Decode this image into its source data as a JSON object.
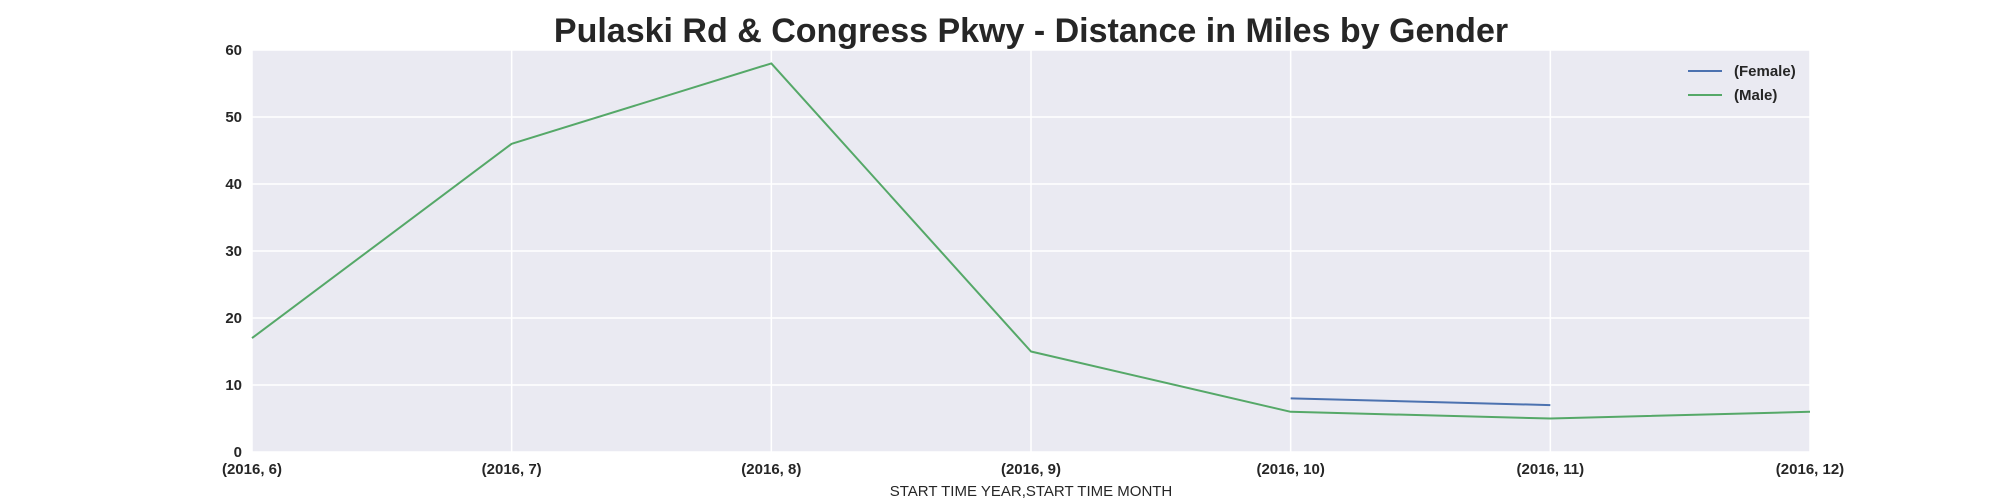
{
  "chart_data": {
    "type": "line",
    "title": "Pulaski Rd & Congress Pkwy - Distance in Miles by Gender",
    "xlabel": "START TIME YEAR,START TIME MONTH",
    "ylabel": "",
    "categories": [
      "(2016, 6)",
      "(2016, 7)",
      "(2016, 8)",
      "(2016, 9)",
      "(2016, 10)",
      "(2016, 11)",
      "(2016, 12)"
    ],
    "yticks": [
      0,
      10,
      20,
      30,
      40,
      50,
      60
    ],
    "ylim": [
      0,
      60
    ],
    "grid": true,
    "legend_position": "top-right",
    "series": [
      {
        "name": "(Female)",
        "color": "#4c72b0",
        "values": [
          null,
          null,
          null,
          null,
          8,
          7,
          null
        ]
      },
      {
        "name": "(Male)",
        "color": "#55a868",
        "values": [
          17,
          46,
          58,
          15,
          6,
          5,
          6
        ]
      }
    ]
  }
}
